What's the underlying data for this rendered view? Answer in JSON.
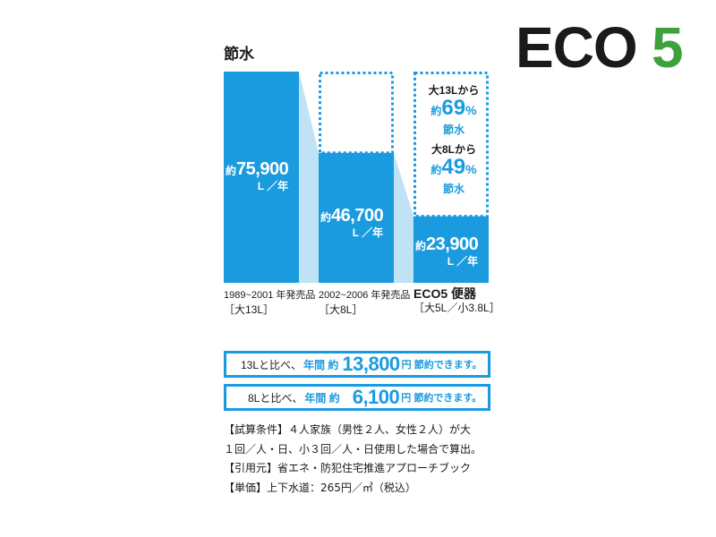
{
  "logo": {
    "text_main": "ECO",
    "text_num": "5",
    "colors": {
      "main": "#1a1a1a",
      "num": "#3da23b"
    }
  },
  "chart_data": {
    "type": "bar",
    "title": "節水",
    "categories": [
      {
        "period": "1989~2001 年発売品",
        "spec": "［大13L］"
      },
      {
        "period": "2002~2006 年発売品",
        "spec": "［大8L］"
      },
      {
        "period": "ECO5 便器",
        "spec": "［大5L／小3.8L］"
      }
    ],
    "values": [
      75900,
      46700,
      23900
    ],
    "value_labels": [
      {
        "prefix": "約",
        "number": "75,900",
        "unit": "L ／年"
      },
      {
        "prefix": "約",
        "number": "46,700",
        "unit": "L ／年"
      },
      {
        "prefix": "約",
        "number": "23,900",
        "unit": "L ／年"
      }
    ],
    "ylim": [
      0,
      75900
    ],
    "colors": {
      "bar": "#1a9be0",
      "connector": "#bfe3f5",
      "dotted": "#1a9be0"
    },
    "annotations": [
      {
        "from": "大13Lから",
        "prefix": "約",
        "percent": "69",
        "symbol": "%",
        "label": "節水"
      },
      {
        "from": "大8Lから",
        "prefix": "約",
        "percent": "49",
        "symbol": "%",
        "label": "節水"
      }
    ]
  },
  "savings": [
    {
      "lead": "13Lと比べ、",
      "mid": "年間 約",
      "amount": "13,800",
      "tail": "円 節約できます。"
    },
    {
      "lead": "8Lと比べ、",
      "mid": "年間 約",
      "amount": "6,100",
      "tail": "円 節約できます。"
    }
  ],
  "notes": [
    "【試算条件】４人家族（男性２人、女性２人）が大",
    "１回／人・日、小３回／人・日使用した場合で算出。",
    "【引用元】省エネ・防犯住宅推進アプローチブック",
    "【単価】上下水道：265円／㎥（税込）"
  ]
}
